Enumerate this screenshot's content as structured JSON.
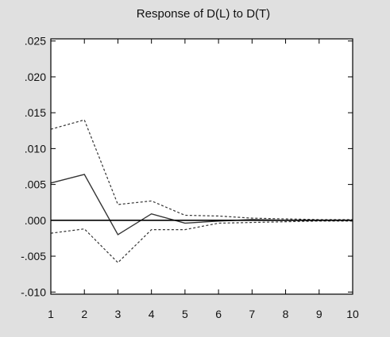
{
  "colors": {
    "background": "#e0e0e0",
    "plot_background": "#ffffff",
    "axis": "#000000",
    "series": "#333333"
  },
  "chart_data": {
    "type": "line",
    "title": "Response of D(L) to D(T)",
    "xlabel": "",
    "ylabel": "",
    "x": [
      1,
      2,
      3,
      4,
      5,
      6,
      7,
      8,
      9,
      10
    ],
    "x_tick_labels": [
      "1",
      "2",
      "3",
      "4",
      "5",
      "6",
      "7",
      "8",
      "9",
      "10"
    ],
    "y_tick_values": [
      0.025,
      0.02,
      0.015,
      0.01,
      0.005,
      0.0,
      -0.005,
      -0.01
    ],
    "y_tick_labels": [
      ".025",
      ".020",
      ".015",
      ".010",
      ".005",
      ".000",
      "-.005",
      "-.010"
    ],
    "xlim": [
      1,
      10
    ],
    "ylim": [
      -0.0103,
      0.0253
    ],
    "grid": false,
    "legend": "none",
    "zero_line": true,
    "series": [
      {
        "style": "solid",
        "values": [
          0.0052,
          0.0064,
          -0.002,
          0.0009,
          -0.0004,
          -0.0001,
          0.0001,
          0.0,
          0.0,
          0.0
        ]
      },
      {
        "style": "dashed",
        "values": [
          0.0127,
          0.014,
          0.0022,
          0.0027,
          0.0007,
          0.0006,
          0.0003,
          0.0002,
          0.0001,
          0.0001
        ]
      },
      {
        "style": "dashed",
        "values": [
          -0.0018,
          -0.0012,
          -0.0059,
          -0.0013,
          -0.0013,
          -0.0004,
          -0.0003,
          -0.0002,
          -0.0001,
          -0.0001
        ]
      }
    ]
  }
}
